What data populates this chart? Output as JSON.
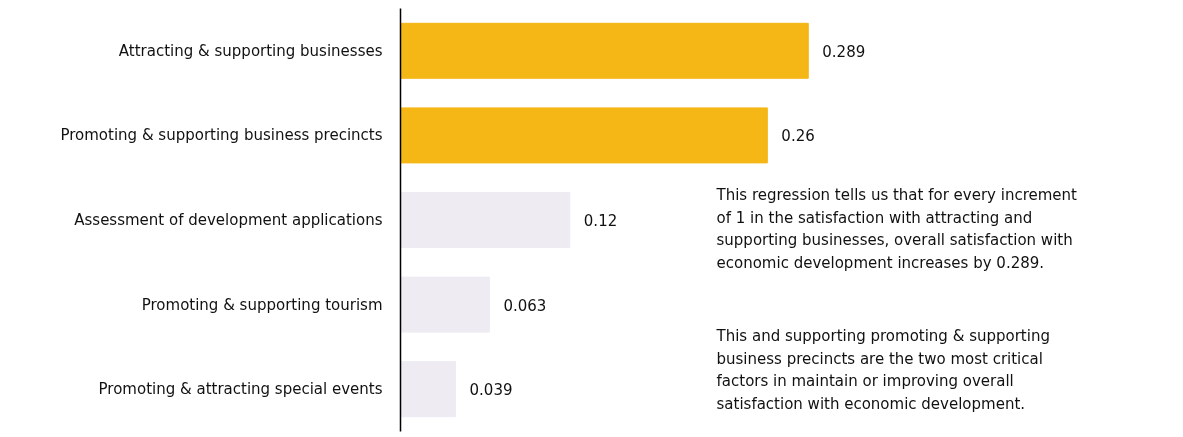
{
  "chart_data": {
    "type": "bar",
    "orientation": "horizontal",
    "categories": [
      "Attracting & supporting businesses",
      "Promoting & supporting business precincts",
      "Assessment of development applications",
      "Promoting & supporting tourism",
      "Promoting & attracting special events"
    ],
    "values": [
      0.289,
      0.26,
      0.12,
      0.063,
      0.039
    ],
    "colors": [
      "#f5b716",
      "#f5b716",
      "#eeebf3",
      "#eeebf3",
      "#eeebf3"
    ],
    "data_labels": true,
    "tick_labels": "y",
    "annotations": [
      {
        "text": "This regression tells us that for every increment\nof 1 in the satisfaction with attracting and\nsupporting businesses, overall satisfaction with\neconomic development increases by 0.289."
      },
      {
        "text": "This and supporting promoting & supporting\nbusiness precincts are the two most critical\nfactors in maintain or improving overall\nsatisfaction with economic development."
      }
    ]
  }
}
